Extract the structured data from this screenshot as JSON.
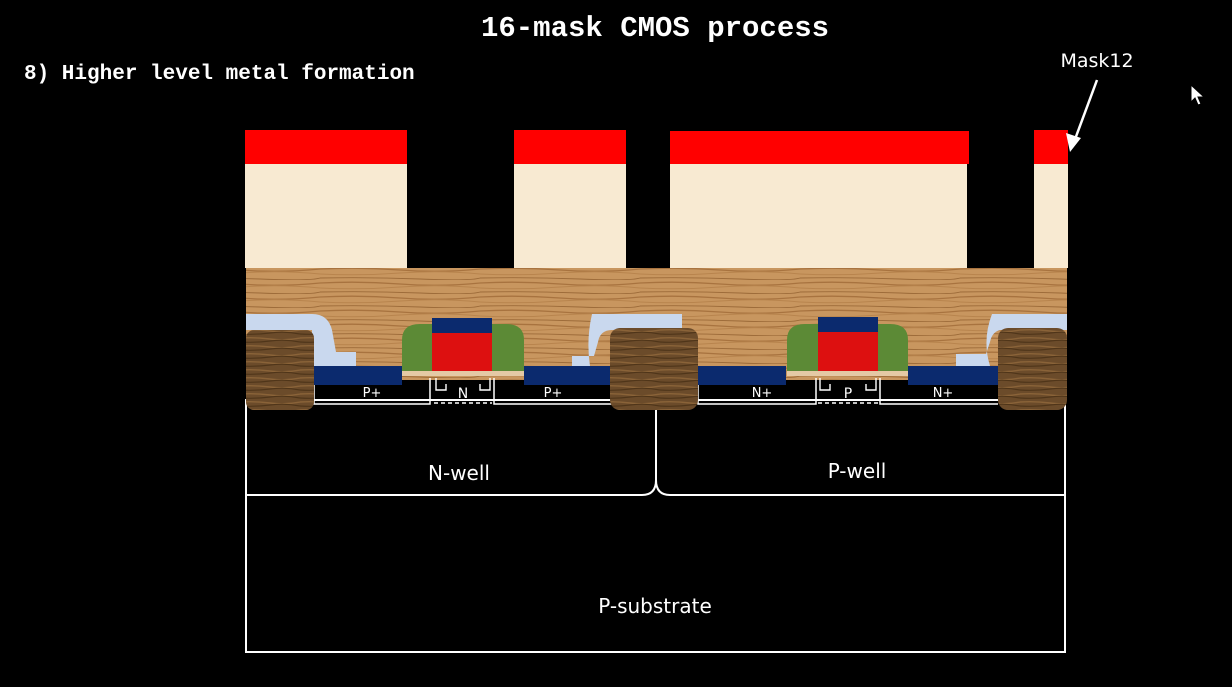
{
  "slide": {
    "title": "16-mask CMOS process",
    "step": "8) Higher level metal formation"
  },
  "annotations": {
    "mask": "Mask12"
  },
  "regions": {
    "nwell": "N-well",
    "pwell": "P-well",
    "substrate": "P-substrate"
  },
  "diffusion_labels": {
    "nmos_left": "N+",
    "nmos_right": "N+",
    "nmos_channel": "P",
    "pmos_left": "P+",
    "pmos_right": "P+",
    "pmos_channel": "N"
  },
  "colors": {
    "background": "#000000",
    "photoresist": "#ff0000",
    "metal_layer": "#f8ead2",
    "dielectric_wood": "#c8965f",
    "field_oxide": "#6b4b2a",
    "diffusion": "#0b2a6e",
    "gate_poly": "#dd1010",
    "gate_cap": "#0b2a6e",
    "spacer": "#5c8a36",
    "liner": "#c9d8ee",
    "outline": "#ffffff"
  },
  "icons": {
    "pointer": "mouse-pointer-icon"
  }
}
